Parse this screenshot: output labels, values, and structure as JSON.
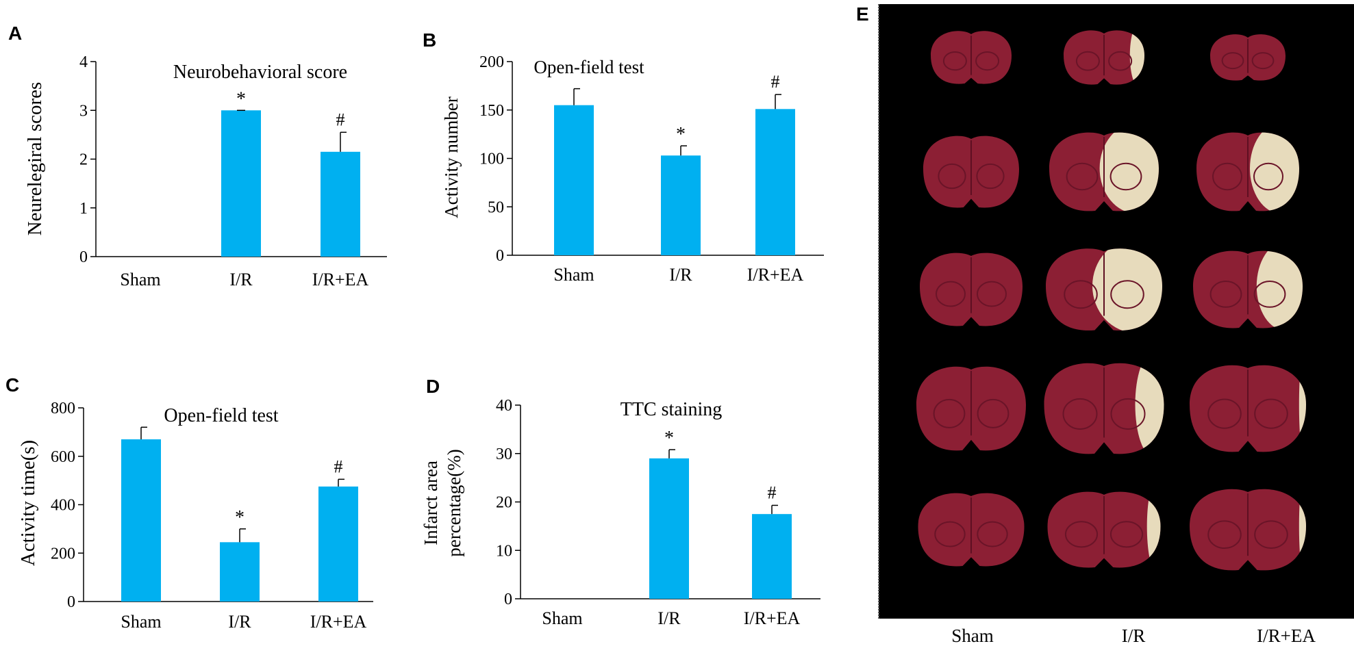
{
  "chart_data": [
    {
      "panel": "A",
      "type": "bar",
      "title": "Neurobehavioral score",
      "ylabel": "Neurelegiral scores",
      "categories": [
        "Sham",
        "I/R",
        "I/R+EA"
      ],
      "values": [
        0,
        3.0,
        2.15
      ],
      "errors": [
        0,
        0,
        0.4
      ],
      "markers": [
        "",
        "*",
        "#"
      ],
      "ylim": [
        0,
        4
      ],
      "yticks": [
        "0",
        "1",
        "2",
        "3",
        "4"
      ]
    },
    {
      "panel": "B",
      "type": "bar",
      "title": "Open-field test",
      "ylabel": "Activity number",
      "categories": [
        "Sham",
        "I/R",
        "I/R+EA"
      ],
      "values": [
        155,
        103,
        151
      ],
      "errors": [
        17,
        10,
        15
      ],
      "markers": [
        "",
        "*",
        "#"
      ],
      "ylim": [
        0,
        200
      ],
      "yticks": [
        "0",
        "50",
        "100",
        "150",
        "200"
      ]
    },
    {
      "panel": "C",
      "type": "bar",
      "title": "Open-field test",
      "ylabel": "Activity time(s)",
      "categories": [
        "Sham",
        "I/R",
        "I/R+EA"
      ],
      "values": [
        670,
        245,
        475
      ],
      "errors": [
        50,
        55,
        30
      ],
      "markers": [
        "",
        "*",
        "#"
      ],
      "ylim": [
        0,
        800
      ],
      "yticks": [
        "0",
        "200",
        "400",
        "600",
        "800"
      ]
    },
    {
      "panel": "D",
      "type": "bar",
      "title": "TTC staining",
      "ylabel": [
        "Infarct area",
        "percentage(%)"
      ],
      "categories": [
        "Sham",
        "I/R",
        "I/R+EA"
      ],
      "values": [
        0,
        29,
        17.5
      ],
      "errors": [
        0,
        1.8,
        1.8
      ],
      "markers": [
        "",
        "*",
        "#"
      ],
      "ylim": [
        0,
        40
      ],
      "yticks": [
        "0",
        "10",
        "20",
        "30",
        "40"
      ]
    }
  ],
  "panel_e": {
    "label": "E",
    "columns": [
      "Sham",
      "I/R",
      "I/R+EA"
    ],
    "rows": 5,
    "infarct_fraction": [
      [
        0,
        0.15,
        0
      ],
      [
        0,
        0.45,
        0.4
      ],
      [
        0,
        0.5,
        0.35
      ],
      [
        0,
        0.2,
        0.05
      ],
      [
        0,
        0.1,
        0.05
      ]
    ]
  },
  "colors": {
    "bar": "#00b0f0",
    "axis": "#000000",
    "background_e": "#000000",
    "tissue": "#8c1f34",
    "infarct": "#ece6c4"
  }
}
